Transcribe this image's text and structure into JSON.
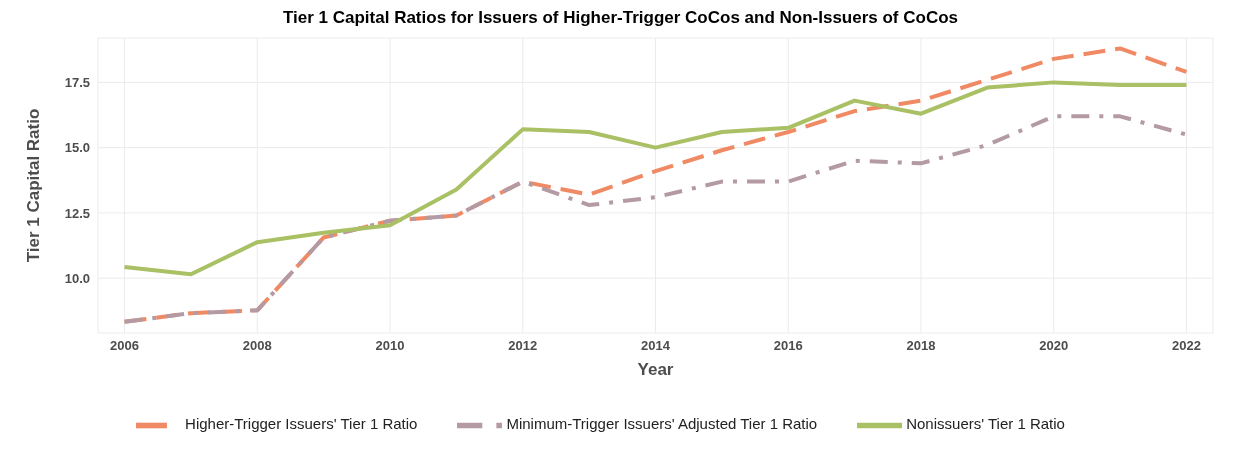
{
  "chart_data": {
    "type": "line",
    "title": "Tier 1 Capital Ratios for Issuers of Higher-Trigger CoCos and Non-Issuers of CoCos",
    "xlabel": "Year",
    "ylabel": "Tier 1 Capital Ratio",
    "x": [
      2006,
      2007,
      2008,
      2009,
      2010,
      2011,
      2012,
      2013,
      2014,
      2015,
      2016,
      2017,
      2018,
      2019,
      2020,
      2021,
      2022
    ],
    "series": [
      {
        "name": "Higher-Trigger Issuers' Tier 1 Ratio",
        "color": "#f08a64",
        "line_style": "dashed",
        "values": [
          8.33,
          8.66,
          8.77,
          11.56,
          12.2,
          12.4,
          13.7,
          13.2,
          14.1,
          14.9,
          15.6,
          16.4,
          16.8,
          17.6,
          18.4,
          18.8,
          17.9
        ]
      },
      {
        "name": "Minimum-Trigger Issuers' Adjusted Tier 1 Ratio",
        "color": "#b39aa3",
        "line_style": "dashdot",
        "values": [
          8.33,
          8.66,
          8.77,
          11.56,
          12.2,
          12.4,
          13.7,
          12.8,
          13.1,
          13.7,
          13.7,
          14.5,
          14.4,
          15.1,
          16.2,
          16.2,
          15.5
        ]
      },
      {
        "name": "Nonissuers' Tier 1 Ratio",
        "color": "#a9c064",
        "line_style": "solid",
        "values": [
          10.43,
          10.15,
          11.38,
          11.74,
          12.03,
          13.4,
          15.7,
          15.6,
          15.0,
          15.6,
          15.76,
          16.8,
          16.3,
          17.3,
          17.5,
          17.4,
          17.4
        ]
      }
    ],
    "xlim": [
      2005.6,
      2022.4
    ],
    "xticks": [
      2006,
      2008,
      2010,
      2012,
      2014,
      2016,
      2018,
      2020,
      2022
    ],
    "ylim": [
      7.9,
      19.2
    ],
    "yticks": [
      {
        "value": 10,
        "label": "10.0"
      },
      {
        "value": 12.5,
        "label": "12.5"
      },
      {
        "value": 15,
        "label": "15.0"
      },
      {
        "value": 17.5,
        "label": "17.5"
      }
    ],
    "grid": true,
    "legend": "bottom",
    "marker": "none"
  }
}
